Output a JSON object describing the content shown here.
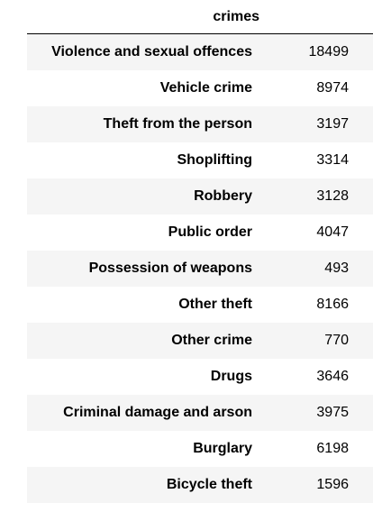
{
  "table": {
    "index_name": "crimes",
    "rows": [
      {
        "label": "Violence and sexual offences",
        "value": "18499"
      },
      {
        "label": "Vehicle crime",
        "value": "8974"
      },
      {
        "label": "Theft from the person",
        "value": "3197"
      },
      {
        "label": "Shoplifting",
        "value": "3314"
      },
      {
        "label": "Robbery",
        "value": "3128"
      },
      {
        "label": "Public order",
        "value": "4047"
      },
      {
        "label": "Possession of weapons",
        "value": "493"
      },
      {
        "label": "Other theft",
        "value": "8166"
      },
      {
        "label": "Other crime",
        "value": "770"
      },
      {
        "label": "Drugs",
        "value": "3646"
      },
      {
        "label": "Criminal damage and arson",
        "value": "3975"
      },
      {
        "label": "Burglary",
        "value": "6198"
      },
      {
        "label": "Bicycle theft",
        "value": "1596"
      }
    ]
  },
  "colors": {
    "stripe": "#f5f5f5",
    "background": "#ffffff",
    "text": "#000000"
  }
}
